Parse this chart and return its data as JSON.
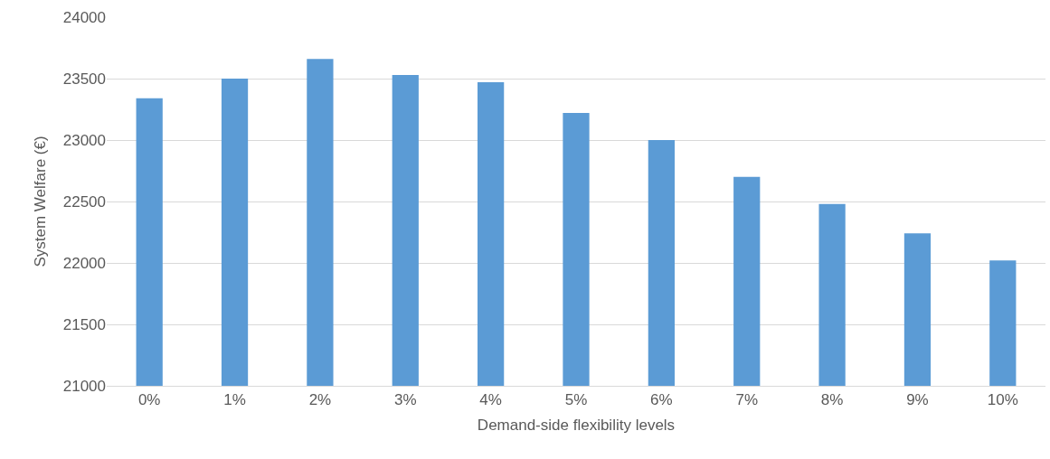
{
  "chart_data": {
    "type": "bar",
    "xlabel": "Demand-side flexibility levels",
    "ylabel": "System Welfare (€)",
    "categories": [
      "0%",
      "1%",
      "2%",
      "3%",
      "4%",
      "5%",
      "6%",
      "7%",
      "8%",
      "9%",
      "10%"
    ],
    "values": [
      23340,
      23500,
      23660,
      23530,
      23470,
      23220,
      23000,
      22700,
      22480,
      22240,
      22020
    ],
    "color": "#5b9bd5",
    "ylim": [
      21000,
      24000
    ],
    "yticks": [
      21000,
      21500,
      22000,
      22500,
      23000,
      23500,
      24000
    ],
    "grid": "y"
  }
}
